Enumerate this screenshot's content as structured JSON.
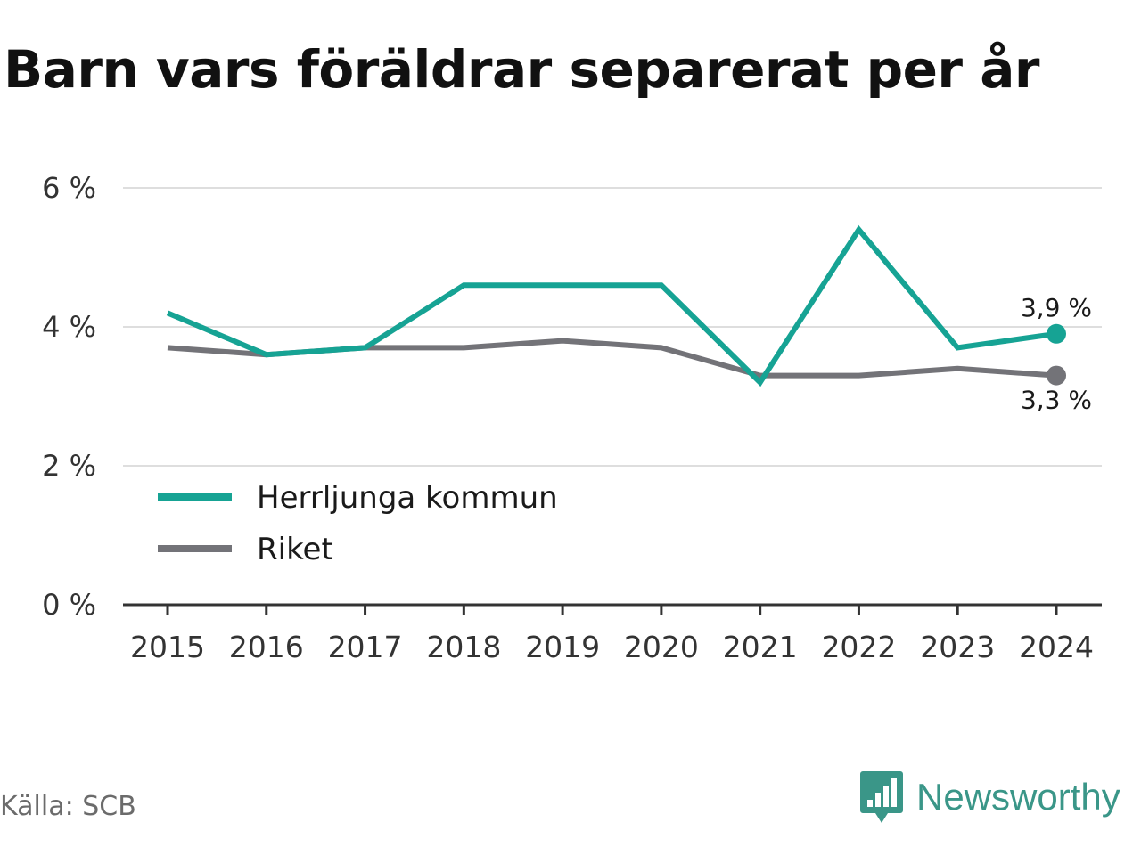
{
  "title": "Barn vars föräldrar separerat per år",
  "source": "Källa: SCB",
  "brand": {
    "name": "Newsworthy",
    "icon": "newsworthy-logo-icon",
    "color": "#3a9688"
  },
  "chart_data": {
    "type": "line",
    "title": "Barn vars föräldrar separerat per år",
    "x": [
      "2015",
      "2016",
      "2017",
      "2018",
      "2019",
      "2020",
      "2021",
      "2022",
      "2023",
      "2024"
    ],
    "series": [
      {
        "name": "Herrljunga kommun",
        "color": "#16a394",
        "values": [
          4.2,
          3.6,
          3.7,
          4.6,
          4.6,
          4.6,
          3.2,
          5.4,
          3.7,
          3.9
        ],
        "end_label": "3,9 %"
      },
      {
        "name": "Riket",
        "color": "#737378",
        "values": [
          3.7,
          3.6,
          3.7,
          3.7,
          3.8,
          3.7,
          3.3,
          3.3,
          3.4,
          3.3
        ],
        "end_label": "3,3 %"
      }
    ],
    "y_ticks": [
      {
        "value": 0,
        "label": "0 %"
      },
      {
        "value": 2,
        "label": "2 %"
      },
      {
        "value": 4,
        "label": "4 %"
      },
      {
        "value": 6,
        "label": "6 %"
      }
    ],
    "ylim": [
      0,
      6
    ],
    "grid": true,
    "legend": "bottom-left"
  }
}
